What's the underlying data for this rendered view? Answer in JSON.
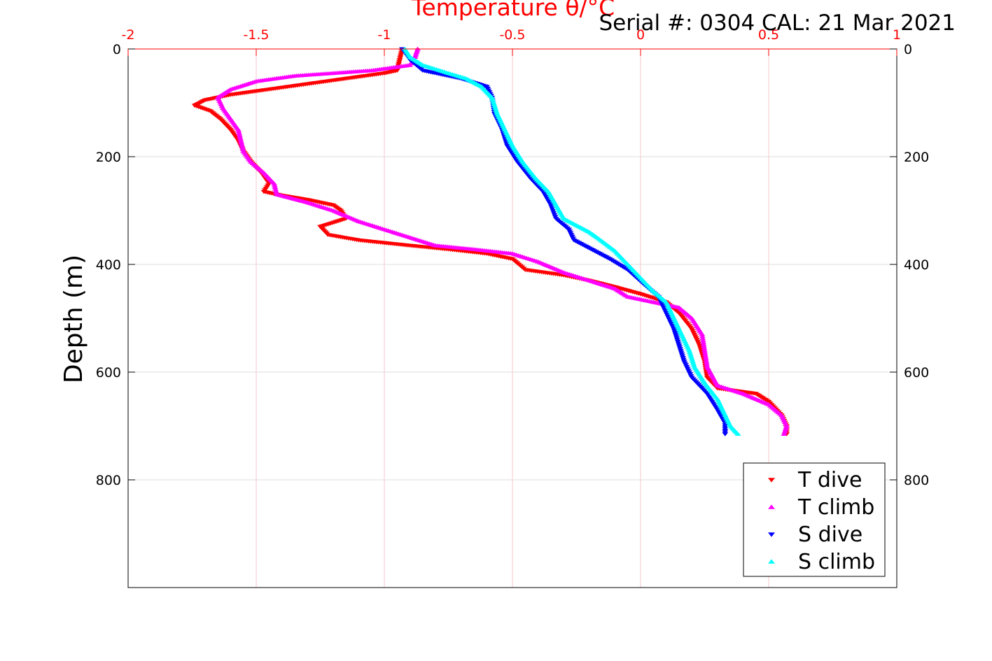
{
  "chart_data": {
    "type": "scatter",
    "title": "",
    "x_axis_title": "Temperature θ/°C",
    "serial_label": "Serial #: 0304  CAL: 21 Mar 2021",
    "ylabel": "Depth (m)",
    "xlim": [
      -2,
      1
    ],
    "ylim": [
      0,
      1000
    ],
    "y_reversed": true,
    "x_ticks": [
      "-2",
      "-1.5",
      "-1",
      "-0.5",
      "0",
      "0.5",
      "1"
    ],
    "y_ticks": [
      "0",
      "200",
      "400",
      "600",
      "800"
    ],
    "grid": true,
    "legend_position": "bottom-right",
    "colors": {
      "axis_top": "#ff0000",
      "axis_frame": "#000000"
    },
    "series": [
      {
        "name": "T dive",
        "marker": "triangle-down",
        "color": "#ff0000",
        "points": [
          [
            -0.93,
            0
          ],
          [
            -0.94,
            20
          ],
          [
            -0.95,
            40
          ],
          [
            -1.0,
            45
          ],
          [
            -1.15,
            55
          ],
          [
            -1.3,
            65
          ],
          [
            -1.45,
            75
          ],
          [
            -1.6,
            85
          ],
          [
            -1.7,
            95
          ],
          [
            -1.74,
            105
          ],
          [
            -1.68,
            115
          ],
          [
            -1.64,
            130
          ],
          [
            -1.6,
            150
          ],
          [
            -1.57,
            170
          ],
          [
            -1.55,
            190
          ],
          [
            -1.52,
            210
          ],
          [
            -1.48,
            230
          ],
          [
            -1.45,
            250
          ],
          [
            -1.47,
            265
          ],
          [
            -1.4,
            272
          ],
          [
            -1.3,
            280
          ],
          [
            -1.2,
            290
          ],
          [
            -1.17,
            300
          ],
          [
            -1.15,
            315
          ],
          [
            -1.25,
            330
          ],
          [
            -1.22,
            345
          ],
          [
            -1.1,
            355
          ],
          [
            -1.0,
            360
          ],
          [
            -0.9,
            365
          ],
          [
            -0.75,
            372
          ],
          [
            -0.6,
            380
          ],
          [
            -0.5,
            390
          ],
          [
            -0.45,
            410
          ],
          [
            -0.3,
            420
          ],
          [
            -0.2,
            430
          ],
          [
            -0.1,
            442
          ],
          [
            0.0,
            455
          ],
          [
            0.1,
            470
          ],
          [
            0.15,
            490
          ],
          [
            0.2,
            520
          ],
          [
            0.23,
            550
          ],
          [
            0.25,
            580
          ],
          [
            0.26,
            610
          ],
          [
            0.3,
            630
          ],
          [
            0.45,
            640
          ],
          [
            0.5,
            655
          ],
          [
            0.55,
            680
          ],
          [
            0.57,
            700
          ],
          [
            0.57,
            715
          ]
        ]
      },
      {
        "name": "T climb",
        "marker": "triangle-up",
        "color": "#ff00ff",
        "points": [
          [
            -0.87,
            0
          ],
          [
            -0.88,
            15
          ],
          [
            -0.9,
            30
          ],
          [
            -1.05,
            40
          ],
          [
            -1.2,
            45
          ],
          [
            -1.35,
            50
          ],
          [
            -1.5,
            60
          ],
          [
            -1.6,
            75
          ],
          [
            -1.65,
            90
          ],
          [
            -1.63,
            110
          ],
          [
            -1.6,
            130
          ],
          [
            -1.57,
            150
          ],
          [
            -1.56,
            170
          ],
          [
            -1.55,
            190
          ],
          [
            -1.52,
            210
          ],
          [
            -1.47,
            230
          ],
          [
            -1.43,
            250
          ],
          [
            -1.42,
            270
          ],
          [
            -1.3,
            285
          ],
          [
            -1.2,
            300
          ],
          [
            -1.1,
            320
          ],
          [
            -1.0,
            335
          ],
          [
            -0.9,
            350
          ],
          [
            -0.8,
            365
          ],
          [
            -0.65,
            372
          ],
          [
            -0.5,
            380
          ],
          [
            -0.4,
            395
          ],
          [
            -0.3,
            415
          ],
          [
            -0.2,
            430
          ],
          [
            -0.1,
            445
          ],
          [
            -0.05,
            460
          ],
          [
            0.05,
            470
          ],
          [
            0.15,
            480
          ],
          [
            0.2,
            500
          ],
          [
            0.24,
            530
          ],
          [
            0.25,
            560
          ],
          [
            0.26,
            590
          ],
          [
            0.3,
            625
          ],
          [
            0.4,
            640
          ],
          [
            0.5,
            660
          ],
          [
            0.55,
            680
          ],
          [
            0.57,
            700
          ],
          [
            0.56,
            715
          ]
        ]
      },
      {
        "name": "S dive",
        "marker": "triangle-down",
        "color": "#0000ff",
        "points": [
          [
            -0.93,
            0
          ],
          [
            -0.9,
            20
          ],
          [
            -0.85,
            40
          ],
          [
            -0.7,
            55
          ],
          [
            -0.6,
            70
          ],
          [
            -0.58,
            90
          ],
          [
            -0.57,
            120
          ],
          [
            -0.54,
            150
          ],
          [
            -0.52,
            180
          ],
          [
            -0.48,
            210
          ],
          [
            -0.43,
            240
          ],
          [
            -0.38,
            265
          ],
          [
            -0.35,
            290
          ],
          [
            -0.33,
            315
          ],
          [
            -0.28,
            335
          ],
          [
            -0.26,
            355
          ],
          [
            -0.2,
            370
          ],
          [
            -0.12,
            390
          ],
          [
            -0.05,
            410
          ],
          [
            0.02,
            440
          ],
          [
            0.07,
            460
          ],
          [
            0.1,
            490
          ],
          [
            0.13,
            520
          ],
          [
            0.15,
            550
          ],
          [
            0.17,
            580
          ],
          [
            0.2,
            610
          ],
          [
            0.26,
            640
          ],
          [
            0.3,
            670
          ],
          [
            0.33,
            695
          ],
          [
            0.33,
            715
          ]
        ]
      },
      {
        "name": "S climb",
        "marker": "triangle-up",
        "color": "#00ffff",
        "points": [
          [
            -0.92,
            0
          ],
          [
            -0.9,
            15
          ],
          [
            -0.85,
            30
          ],
          [
            -0.75,
            45
          ],
          [
            -0.68,
            55
          ],
          [
            -0.62,
            70
          ],
          [
            -0.58,
            90
          ],
          [
            -0.56,
            120
          ],
          [
            -0.53,
            150
          ],
          [
            -0.5,
            180
          ],
          [
            -0.46,
            210
          ],
          [
            -0.41,
            240
          ],
          [
            -0.36,
            265
          ],
          [
            -0.33,
            290
          ],
          [
            -0.3,
            315
          ],
          [
            -0.2,
            340
          ],
          [
            -0.17,
            350
          ],
          [
            -0.1,
            375
          ],
          [
            -0.05,
            400
          ],
          [
            0.0,
            425
          ],
          [
            0.05,
            450
          ],
          [
            0.1,
            470
          ],
          [
            0.13,
            500
          ],
          [
            0.16,
            530
          ],
          [
            0.19,
            560
          ],
          [
            0.21,
            590
          ],
          [
            0.25,
            620
          ],
          [
            0.3,
            650
          ],
          [
            0.33,
            680
          ],
          [
            0.35,
            700
          ],
          [
            0.38,
            715
          ]
        ]
      }
    ]
  }
}
